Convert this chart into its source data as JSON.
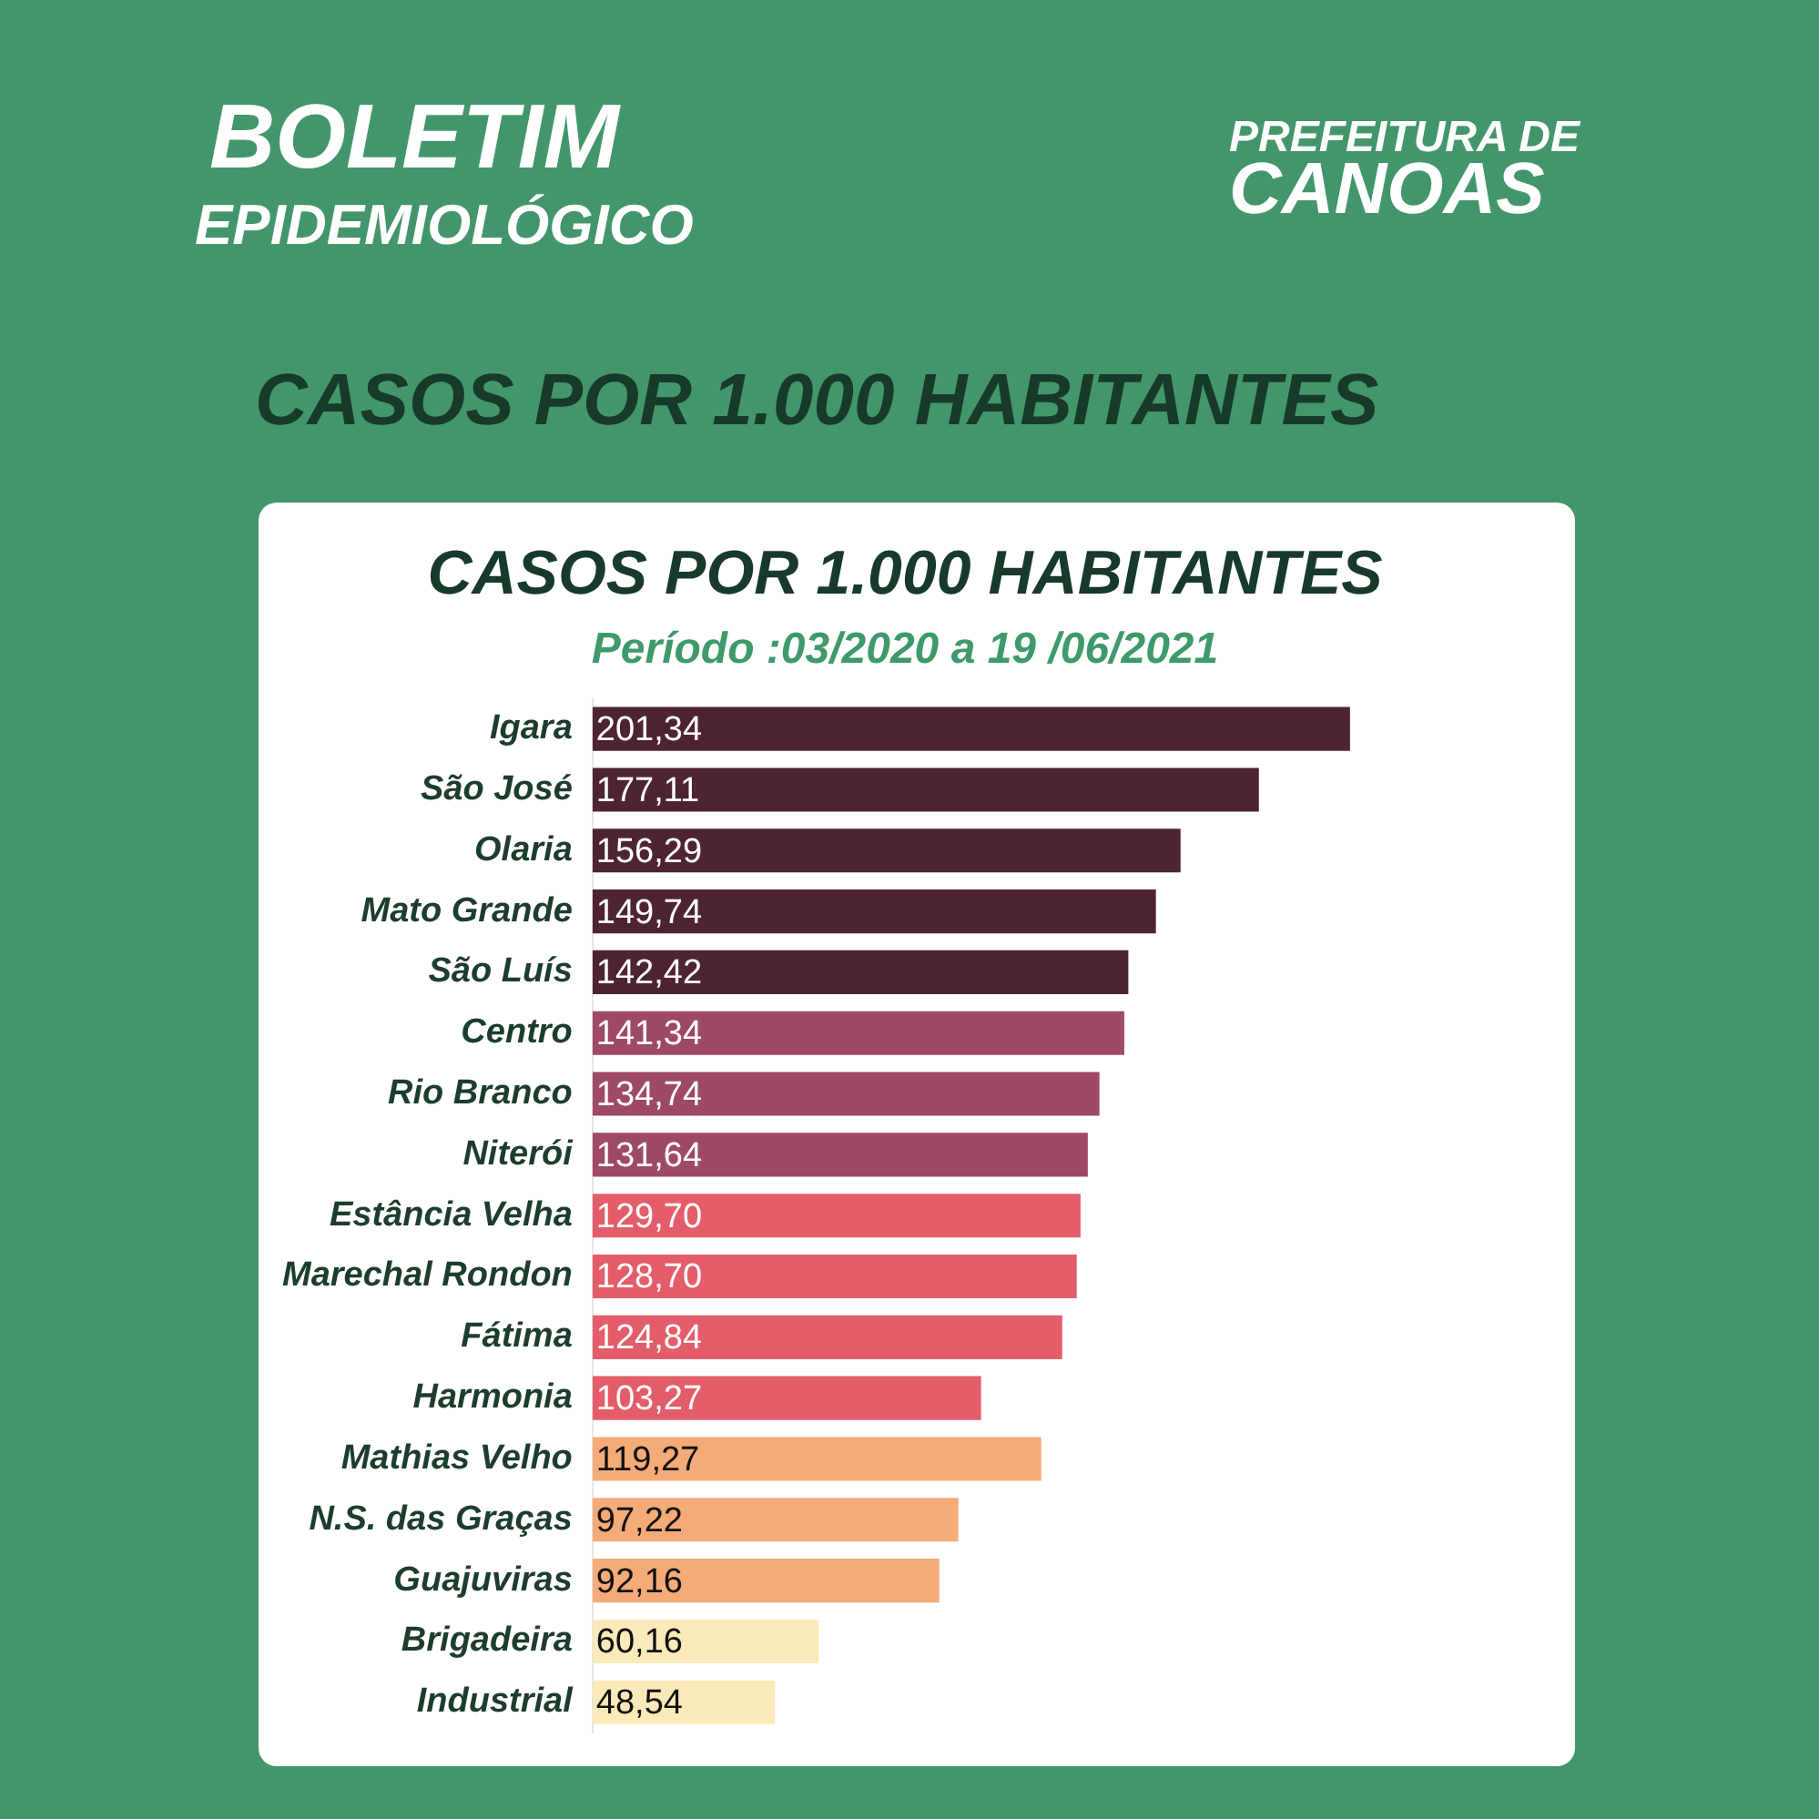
{
  "chart_data": {
    "type": "bar",
    "orientation": "horizontal",
    "title": "CASOS POR 1.000 HABITANTES",
    "subtitle": "Período :03/2020 a 19 /06/2021",
    "annotations": [
      "BOLETIM",
      "EPIDEMIOLÓGICO",
      "PREFEITURA DE",
      "CANOAS",
      "CASOS POR 1.000 HABITANTES"
    ],
    "categories": [
      "Igara",
      "São José",
      "Olaria",
      "Mato Grande",
      "São Luís",
      "Centro",
      "Rio Branco",
      "Niterói",
      "Estância Velha",
      "Marechal Rondon",
      "Fátima",
      "Harmonia",
      "Mathias Velho",
      "N.S. das Graças",
      "Guajuviras",
      "Brigadeira",
      "Industrial"
    ],
    "values": [
      201.34,
      177.11,
      156.29,
      149.74,
      142.42,
      141.34,
      134.74,
      131.64,
      129.7,
      128.7,
      124.84,
      103.27,
      119.27,
      97.22,
      92.16,
      60.16,
      48.54
    ],
    "colors": [
      "#4e2434",
      "#4e2434",
      "#4e2434",
      "#4e2434",
      "#4e2434",
      "#9e4a64",
      "#9e4a64",
      "#9e4a64",
      "#e35d6a",
      "#e35d6a",
      "#e35d6a",
      "#e35d6a",
      "#f5ab78",
      "#f5ab78",
      "#f5ab78",
      "#faeab9",
      "#faeab9"
    ],
    "value_labels": [
      "201,34",
      "177,11",
      "156,29",
      "149,74",
      "142,42",
      "141,34",
      "134,74",
      "131,64",
      "129,70",
      "128,70",
      "124,84",
      "103,27",
      "119,27",
      "97,22",
      "92,16",
      "60,16",
      "48,54"
    ],
    "legend": false
  }
}
